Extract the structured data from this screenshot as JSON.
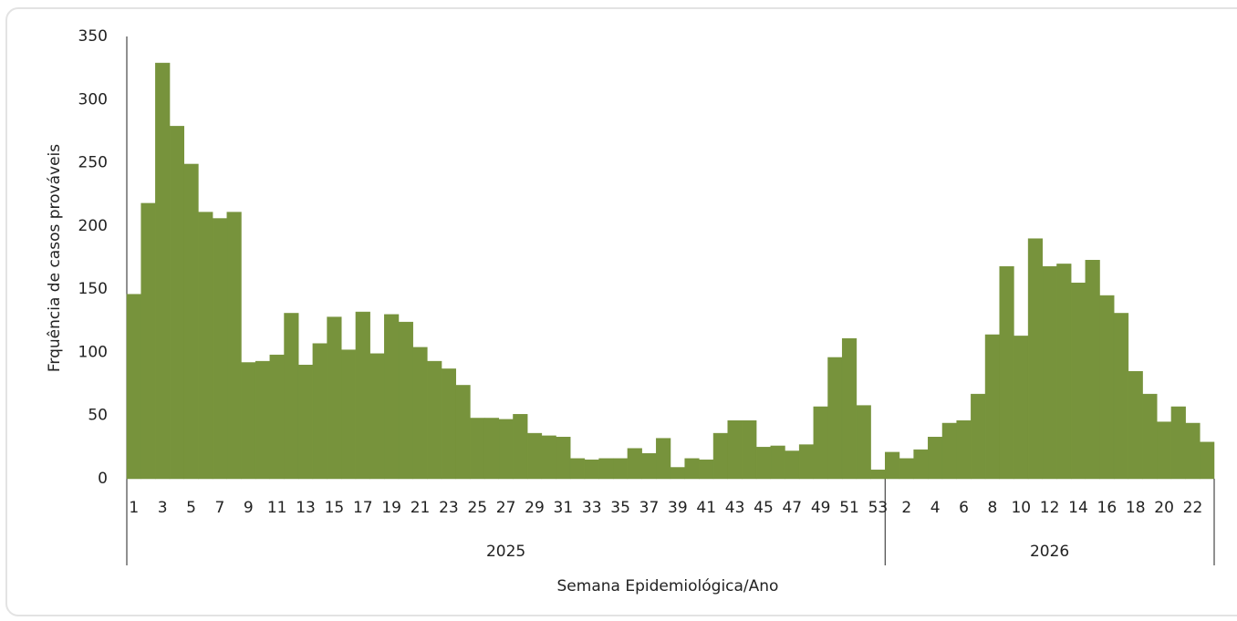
{
  "chart_data": {
    "type": "bar",
    "color": "#77933c",
    "y_label": "Frquência de casos prováveis",
    "x_label": "Semana Epidemiológica/Ano",
    "ylim": [
      0,
      350
    ],
    "yticks": [
      0,
      50,
      100,
      150,
      200,
      250,
      300,
      350
    ],
    "groups": [
      {
        "name": "2025",
        "categories": [
          1,
          null,
          3,
          null,
          5,
          null,
          7,
          null,
          9,
          null,
          11,
          null,
          13,
          null,
          15,
          null,
          17,
          null,
          19,
          null,
          21,
          null,
          23,
          null,
          25,
          null,
          27,
          null,
          29,
          null,
          31,
          null,
          33,
          null,
          35,
          null,
          37,
          null,
          39,
          null,
          41,
          null,
          43,
          null,
          45,
          null,
          47,
          null,
          49,
          null,
          51,
          null,
          53
        ],
        "values": [
          146,
          218,
          329,
          279,
          249,
          211,
          206,
          211,
          92,
          93,
          98,
          131,
          90,
          107,
          128,
          102,
          132,
          99,
          130,
          124,
          104,
          93,
          87,
          74,
          48,
          48,
          47,
          51,
          36,
          34,
          33,
          16,
          15,
          16,
          16,
          24,
          20,
          32,
          9,
          16,
          15,
          36,
          46,
          46,
          25,
          26,
          22,
          27,
          57,
          96,
          111,
          58,
          7
        ]
      },
      {
        "name": "2026",
        "categories": [
          null,
          2,
          null,
          4,
          null,
          6,
          null,
          8,
          null,
          10,
          null,
          12,
          null,
          14,
          null,
          16,
          null,
          18,
          null,
          20,
          null,
          22,
          null
        ],
        "values": [
          21,
          16,
          23,
          33,
          44,
          46,
          67,
          114,
          168,
          113,
          190,
          168,
          170,
          155,
          173,
          145,
          131,
          85,
          67,
          45,
          57,
          44,
          29
        ]
      }
    ]
  }
}
